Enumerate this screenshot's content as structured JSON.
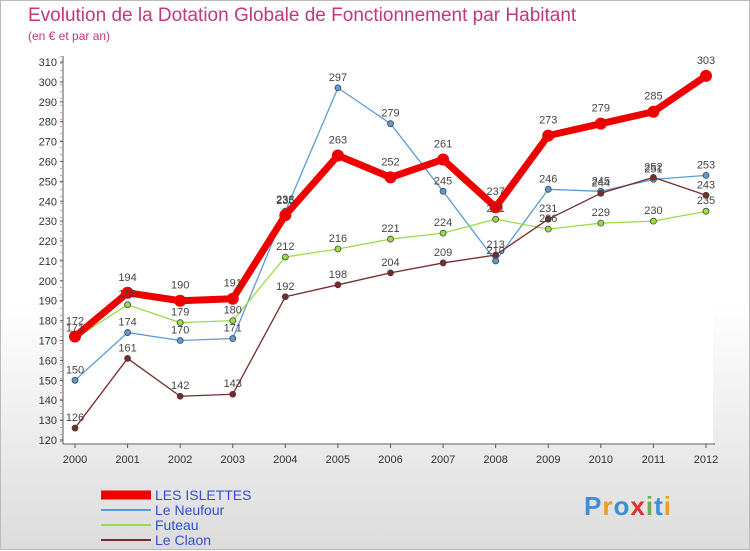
{
  "header": {
    "title": "Evolution de la Dotation Globale de Fonctionnement par Habitant",
    "subtitle": "(en € et par an)"
  },
  "brand": {
    "text": "Proxiti",
    "letters": [
      "P",
      "r",
      "o",
      "x",
      "i",
      "t",
      "i"
    ],
    "colors": [
      "#3a8fd8",
      "#e8a020",
      "#3a8fd8",
      "#e03030",
      "#6ab04c",
      "#3a8fd8",
      "#e8a020"
    ]
  },
  "chart_data": {
    "type": "line",
    "title": "Evolution de la Dotation Globale de Fonctionnement par Habitant",
    "subtitle": "(en € et par an)",
    "xlabel": "",
    "ylabel": "",
    "ylim": [
      120,
      310
    ],
    "yticks": [
      120,
      130,
      140,
      150,
      160,
      170,
      180,
      190,
      200,
      210,
      220,
      230,
      240,
      250,
      260,
      270,
      280,
      290,
      300,
      310
    ],
    "categories": [
      "2000",
      "2001",
      "2002",
      "2003",
      "2004",
      "2005",
      "2006",
      "2007",
      "2008",
      "2009",
      "2010",
      "2011",
      "2012"
    ],
    "grid": false,
    "legend_position": "bottom-left",
    "series": [
      {
        "name": "LES ISLETTES",
        "color": "#ee0000",
        "text_color": "#3050d0",
        "width": 7,
        "marker_r": 6,
        "values": [
          172,
          194,
          190,
          191,
          233,
          263,
          252,
          261,
          237,
          273,
          279,
          285,
          303
        ]
      },
      {
        "name": "Le Neufour",
        "color": "#5b9bd5",
        "text_color": "#3050d0",
        "width": 1.3,
        "marker_r": 3,
        "values": [
          150,
          174,
          170,
          171,
          235,
          297,
          279,
          245,
          210,
          246,
          245,
          251,
          253
        ]
      },
      {
        "name": "Futeau",
        "color": "#99dd44",
        "text_color": "#3050d0",
        "width": 1.3,
        "marker_r": 3,
        "values": [
          171,
          188,
          179,
          180,
          212,
          216,
          221,
          224,
          231,
          226,
          229,
          230,
          235
        ]
      },
      {
        "name": "Le Claon",
        "color": "#7a2a2a",
        "text_color": "#3050d0",
        "width": 1.3,
        "marker_r": 3,
        "values": [
          126,
          161,
          142,
          143,
          192,
          198,
          204,
          209,
          213,
          231,
          244,
          252,
          243
        ]
      }
    ]
  }
}
